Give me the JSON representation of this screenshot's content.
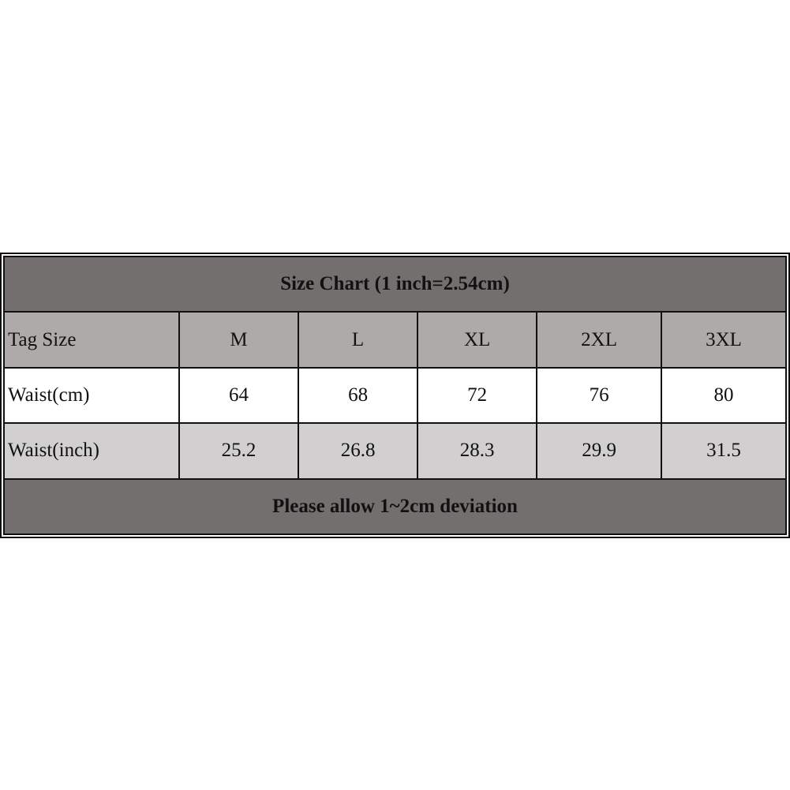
{
  "title": "Size Chart (1 inch=2.54cm)",
  "header": [
    "Tag Size",
    "M",
    "L",
    "XL",
    "2XL",
    "3XL"
  ],
  "rows": [
    [
      "Waist(cm)",
      "64",
      "68",
      "72",
      "76",
      "80"
    ],
    [
      "Waist(inch)",
      "25.2",
      "26.8",
      "28.3",
      "29.9",
      "31.5"
    ]
  ],
  "footer": "Please allow 1~2cm deviation",
  "colors": {
    "title_bg": "#736f6e",
    "header_bg": "#aeaaa9",
    "inch_row_bg": "#d1cfd0"
  }
}
